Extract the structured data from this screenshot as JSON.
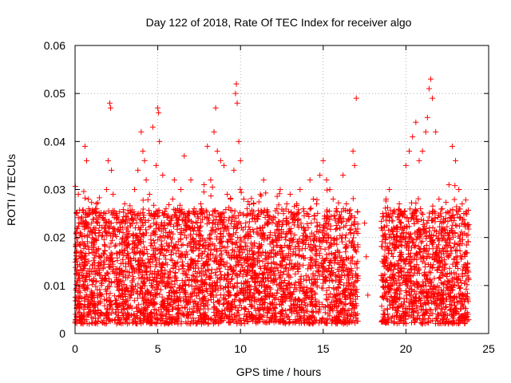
{
  "chart_data": {
    "type": "scatter",
    "title": "Day 122 of 2018, Rate Of TEC Index for receiver algo",
    "xlabel": "GPS time / hours",
    "ylabel": "ROTI / TECUs",
    "xlim": [
      0,
      25
    ],
    "ylim": [
      0,
      0.06
    ],
    "xticks": [
      0,
      5,
      10,
      15,
      20,
      25
    ],
    "xtick_labels": [
      "0",
      "5",
      "10",
      "15",
      "20",
      "25"
    ],
    "yticks": [
      0,
      0.01,
      0.02,
      0.03,
      0.04,
      0.05,
      0.06
    ],
    "ytick_labels": [
      "0",
      "0.01",
      "0.02",
      "0.03",
      "0.04",
      "0.05",
      "0.06"
    ],
    "grid": true,
    "marker": "plus",
    "color": "#ff0000",
    "series": [
      {
        "name": "ROTI",
        "x": [
          0.1,
          0.2,
          0.3,
          0.5,
          0.6,
          0.7,
          0.8,
          1.0,
          1.1,
          1.3,
          1.5,
          1.7,
          1.9,
          2.0,
          2.1,
          2.15,
          2.2,
          2.3,
          2.5,
          2.7,
          2.9,
          3.0,
          3.2,
          3.4,
          3.6,
          3.8,
          4.0,
          4.1,
          4.2,
          4.3,
          4.5,
          4.7,
          4.9,
          5.0,
          5.05,
          5.1,
          5.3,
          5.5,
          5.7,
          5.9,
          6.0,
          6.2,
          6.4,
          6.6,
          6.8,
          7.0,
          7.2,
          7.4,
          7.6,
          7.8,
          8.0,
          8.2,
          8.4,
          8.5,
          8.6,
          8.8,
          9.0,
          9.2,
          9.4,
          9.6,
          9.7,
          9.75,
          9.8,
          9.9,
          10.0,
          10.2,
          10.4,
          10.6,
          10.8,
          11.0,
          11.2,
          11.4,
          11.6,
          11.8,
          12.0,
          12.2,
          12.4,
          12.6,
          12.8,
          13.0,
          13.2,
          13.4,
          13.6,
          13.8,
          14.0,
          14.2,
          14.4,
          14.6,
          14.8,
          15.0,
          15.2,
          15.4,
          15.6,
          15.8,
          16.0,
          16.2,
          16.4,
          16.6,
          16.8,
          16.9,
          17.0,
          17.5,
          17.6,
          17.7,
          18.6,
          18.8,
          19.0,
          19.2,
          19.4,
          19.6,
          19.8,
          20.0,
          20.2,
          20.4,
          20.6,
          20.8,
          21.0,
          21.2,
          21.3,
          21.4,
          21.5,
          21.6,
          21.8,
          22.0,
          22.2,
          22.4,
          22.6,
          22.8,
          23.0,
          23.2,
          23.4,
          23.6
        ],
        "y": [
          0.025,
          0.029,
          0.021,
          0.012,
          0.039,
          0.036,
          0.028,
          0.023,
          0.019,
          0.026,
          0.021,
          0.024,
          0.03,
          0.036,
          0.048,
          0.047,
          0.034,
          0.029,
          0.025,
          0.023,
          0.021,
          0.027,
          0.025,
          0.024,
          0.03,
          0.034,
          0.042,
          0.038,
          0.036,
          0.032,
          0.029,
          0.043,
          0.035,
          0.047,
          0.046,
          0.04,
          0.033,
          0.026,
          0.023,
          0.028,
          0.032,
          0.026,
          0.03,
          0.037,
          0.025,
          0.032,
          0.026,
          0.025,
          0.027,
          0.031,
          0.039,
          0.032,
          0.042,
          0.047,
          0.038,
          0.036,
          0.035,
          0.029,
          0.028,
          0.034,
          0.05,
          0.052,
          0.048,
          0.04,
          0.036,
          0.028,
          0.026,
          0.025,
          0.027,
          0.024,
          0.029,
          0.032,
          0.023,
          0.021,
          0.018,
          0.026,
          0.03,
          0.025,
          0.027,
          0.029,
          0.024,
          0.027,
          0.03,
          0.026,
          0.025,
          0.032,
          0.028,
          0.027,
          0.033,
          0.036,
          0.032,
          0.03,
          0.028,
          0.026,
          0.024,
          0.033,
          0.027,
          0.025,
          0.038,
          0.035,
          0.049,
          0.023,
          0.016,
          0.008,
          0.025,
          0.028,
          0.03,
          0.025,
          0.022,
          0.027,
          0.025,
          0.035,
          0.038,
          0.041,
          0.044,
          0.036,
          0.038,
          0.042,
          0.045,
          0.051,
          0.053,
          0.049,
          0.042,
          0.028,
          0.026,
          0.024,
          0.031,
          0.039,
          0.036,
          0.03,
          0.027,
          0.025
        ]
      }
    ]
  }
}
